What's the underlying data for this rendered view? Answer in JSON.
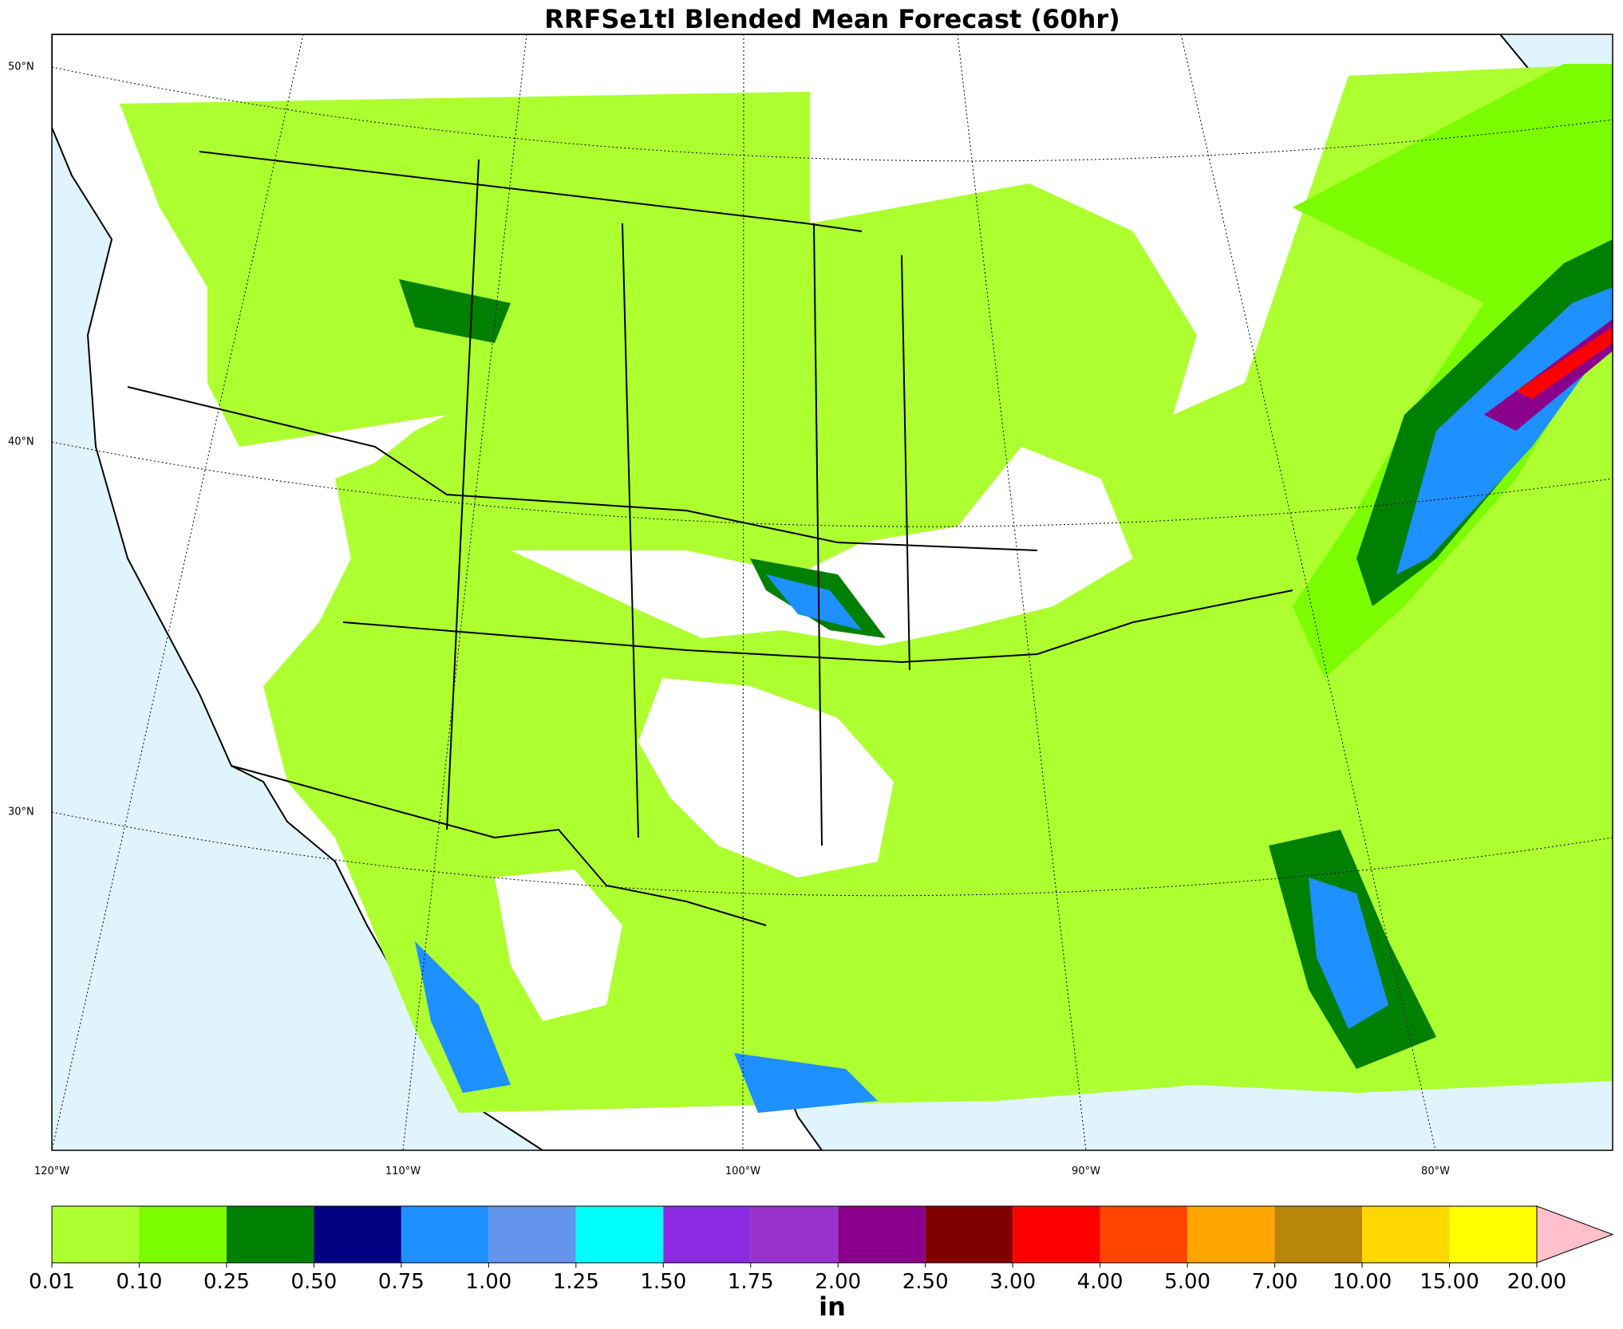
{
  "title": "RRFSe1tl Blended Mean Forecast (60hr)",
  "map": {
    "lat_labels": [
      "50°N",
      "40°N",
      "30°N"
    ],
    "lon_labels": [
      "120°W",
      "110°W",
      "100°W",
      "90°W",
      "80°W"
    ]
  },
  "colorbar": {
    "levels": [
      0.01,
      {
        "value": 0.1,
        "label": "0.10"
      },
      0.25,
      {
        "value": 0.5,
        "label": "0.50"
      },
      0.75,
      {
        "value": 1,
        "label": "1.00"
      },
      1.25,
      {
        "value": 1.5,
        "label": "1.50"
      },
      1.75,
      {
        "value": 2,
        "label": "2.00"
      },
      {
        "value": 2.5,
        "label": "2.50"
      },
      {
        "value": 3,
        "label": "3.00"
      },
      {
        "value": 4,
        "label": "4.00"
      },
      {
        "value": 5,
        "label": "5.00"
      },
      {
        "value": 7,
        "label": "7.00"
      },
      {
        "value": 10,
        "label": "10.00"
      },
      {
        "value": 15,
        "label": "15.00"
      },
      {
        "value": 20,
        "label": "20.00"
      }
    ],
    "colors": [
      "#adff2f",
      "#7cfc00",
      "#008000",
      "#000080",
      "#1e90ff",
      "#6495ed",
      "#00ffff",
      "#8a2be2",
      "#9932cc",
      "#8b008b",
      "#800000",
      "#ff0000",
      "#ff4500",
      "#ffa500",
      "#b8860b",
      "#ffd700",
      "#ffff00"
    ],
    "extend_color": "#ffc0cb",
    "unit": "in"
  }
}
